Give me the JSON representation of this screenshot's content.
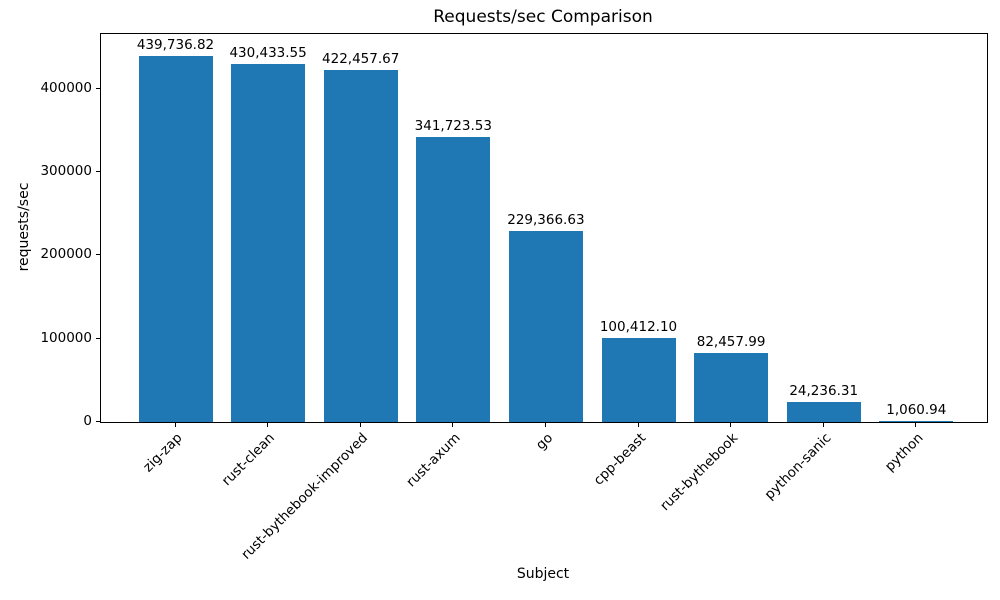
{
  "chart_data": {
    "type": "bar",
    "title": "Requests/sec Comparison",
    "xlabel": "Subject",
    "ylabel": "requests/sec",
    "categories": [
      "zig-zap",
      "rust-clean",
      "rust-bythebook-improved",
      "rust-axum",
      "go",
      "cpp-beast",
      "rust-bythebook",
      "python-sanic",
      "python"
    ],
    "values": [
      439736.82,
      430433.55,
      422457.67,
      341723.53,
      229366.63,
      100412.1,
      82457.99,
      24236.31,
      1060.94
    ],
    "value_labels": [
      "439,736.82",
      "430,433.55",
      "422,457.67",
      "341,723.53",
      "229,366.63",
      "100,412.10",
      "82,457.99",
      "24,236.31",
      "1,060.94"
    ],
    "yticks": [
      {
        "value": 0,
        "label": "0"
      },
      {
        "value": 100000,
        "label": "100000"
      },
      {
        "value": 200000,
        "label": "200000"
      },
      {
        "value": 300000,
        "label": "300000"
      },
      {
        "value": 400000,
        "label": "400000"
      }
    ],
    "ylim": [
      0,
      466000
    ],
    "bar_color": "#1f77b4",
    "grid": false,
    "legend_position": "none",
    "x_tick_rotation_deg": 45
  }
}
